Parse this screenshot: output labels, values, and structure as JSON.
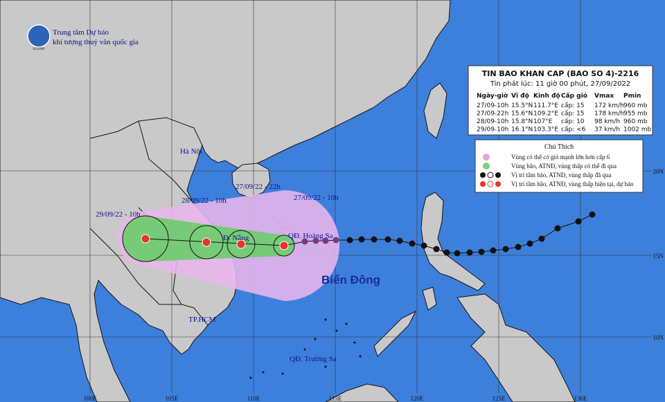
{
  "header": {
    "logo": "NCHMF",
    "agency_line1": "Trung tâm Dự báo",
    "agency_line2": "khí tượng thuỷ văn quốc gia"
  },
  "bulletin": {
    "title": "TIN BAO KHAN CAP  (BAO SO 4)-2216",
    "issued": "Tin phát lúc: 11 giờ 00 phút, 27/09/2022",
    "columns": [
      "Ngày-giờ",
      "Vĩ độ",
      "Kinh độ",
      "Cấp gió",
      "Vmax",
      "Pmin"
    ],
    "rows": [
      [
        "27/09-10h",
        "15.5°N",
        "111.7°E",
        "cấp: 15",
        "172 km/h",
        "960 mb"
      ],
      [
        "27/09-22h",
        "15.6°N",
        "109.2°E",
        "cấp: 15",
        "178 km/h",
        "955 mb"
      ],
      [
        "28/09-10h",
        "15.8°N",
        "107°E",
        "cấp: 10",
        "98 km/h",
        "960 mb"
      ],
      [
        "29/09-10h",
        "16.1°N",
        "103.3°E",
        "cấp: <6",
        "37 km/h",
        "1002 mb"
      ]
    ]
  },
  "legend": {
    "title": "Chú Thích",
    "items": [
      "Vùng có thể có gió mạnh lớn hơn cấp 6",
      "Vùng bão, ATNĐ, vùng thấp có thể đi qua",
      "Vị trí tâm bão, ATNĐ, vùng thấp đã qua",
      "Vị trí tâm bão, ATNĐ, vùng thấp hiện tại, dự báo"
    ]
  },
  "map": {
    "sea": "Biển Đông",
    "places": [
      "Hà Nội",
      "Đ. Nẵng",
      "TP.HCM",
      "QĐ. Hoàng Sa",
      "QĐ. Trường Sa"
    ],
    "forecast_labels": [
      "27/09/22 - 22h",
      "27/09/22 - 10h",
      "28/09/22 - 10h",
      "29/09/22 - 10h"
    ],
    "lon_labels": [
      "100E",
      "105E",
      "110E",
      "115E",
      "120E",
      "125E",
      "130E"
    ],
    "lat_labels": [
      "20N",
      "15N",
      "10N"
    ]
  }
}
